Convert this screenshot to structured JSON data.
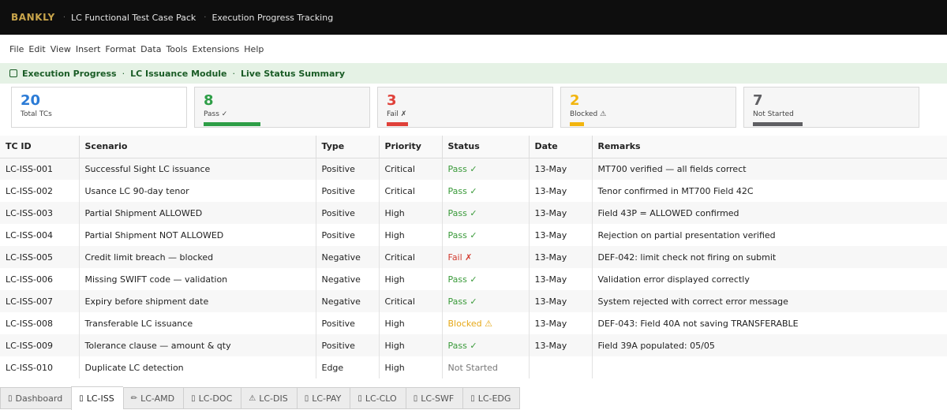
{
  "titlebar": {
    "brand": "BANKLY",
    "separator": "·",
    "doc_title": "LC Functional Test Case Pack",
    "view_title": "Execution Progress Tracking"
  },
  "menu": [
    "File",
    "Edit",
    "View",
    "Insert",
    "Format",
    "Data",
    "Tools",
    "Extensions",
    "Help"
  ],
  "banner": {
    "icon": "grid-icon",
    "parts": [
      "Execution Progress",
      "LC Issuance Module",
      "Live Status Summary"
    ],
    "separator": "·"
  },
  "summary_cards": [
    {
      "count": "20",
      "label": "Total TCs",
      "color": "#2b7bd6",
      "bar_fraction": 0
    },
    {
      "count": "8",
      "label": "Pass ✓",
      "color": "#2e9e47",
      "bar_fraction": 0.4
    },
    {
      "count": "3",
      "label": "Fail ✗",
      "color": "#e0413a",
      "bar_fraction": 0.15
    },
    {
      "count": "2",
      "label": "Blocked ⚠",
      "color": "#f2b50f",
      "bar_fraction": 0.1
    },
    {
      "count": "7",
      "label": "Not Started",
      "color": "#5f5f63",
      "bar_fraction": 0.35
    }
  ],
  "table": {
    "columns": [
      "TC ID",
      "Scenario",
      "Type",
      "Priority",
      "Status",
      "Date",
      "Remarks"
    ],
    "rows": [
      {
        "id": "LC-ISS-001",
        "scenario": "Successful Sight LC issuance",
        "type": "Positive",
        "priority": "Critical",
        "status": "Pass ✓",
        "status_kind": "pass",
        "date": "13-May",
        "remarks": "MT700 verified — all fields correct"
      },
      {
        "id": "LC-ISS-002",
        "scenario": "Usance LC 90-day tenor",
        "type": "Positive",
        "priority": "Critical",
        "status": "Pass ✓",
        "status_kind": "pass",
        "date": "13-May",
        "remarks": "Tenor confirmed in MT700 Field 42C"
      },
      {
        "id": "LC-ISS-003",
        "scenario": "Partial Shipment ALLOWED",
        "type": "Positive",
        "priority": "High",
        "status": "Pass ✓",
        "status_kind": "pass",
        "date": "13-May",
        "remarks": "Field 43P = ALLOWED confirmed"
      },
      {
        "id": "LC-ISS-004",
        "scenario": "Partial Shipment NOT ALLOWED",
        "type": "Positive",
        "priority": "High",
        "status": "Pass ✓",
        "status_kind": "pass",
        "date": "13-May",
        "remarks": "Rejection on partial presentation verified"
      },
      {
        "id": "LC-ISS-005",
        "scenario": "Credit limit breach — blocked",
        "type": "Negative",
        "priority": "Critical",
        "status": "Fail ✗",
        "status_kind": "fail",
        "date": "13-May",
        "remarks": "DEF-042: limit check not firing on submit"
      },
      {
        "id": "LC-ISS-006",
        "scenario": "Missing SWIFT code — validation",
        "type": "Negative",
        "priority": "High",
        "status": "Pass ✓",
        "status_kind": "pass",
        "date": "13-May",
        "remarks": "Validation error displayed correctly"
      },
      {
        "id": "LC-ISS-007",
        "scenario": "Expiry before shipment date",
        "type": "Negative",
        "priority": "Critical",
        "status": "Pass ✓",
        "status_kind": "pass",
        "date": "13-May",
        "remarks": "System rejected with correct error message"
      },
      {
        "id": "LC-ISS-008",
        "scenario": "Transferable LC issuance",
        "type": "Positive",
        "priority": "High",
        "status": "Blocked ⚠",
        "status_kind": "blocked",
        "date": "13-May",
        "remarks": "DEF-043: Field 40A not saving TRANSFERABLE"
      },
      {
        "id": "LC-ISS-009",
        "scenario": "Tolerance clause — amount & qty",
        "type": "Positive",
        "priority": "High",
        "status": "Pass ✓",
        "status_kind": "pass",
        "date": "13-May",
        "remarks": "Field 39A populated: 05/05"
      },
      {
        "id": "LC-ISS-010",
        "scenario": "Duplicate LC detection",
        "type": "Edge",
        "priority": "High",
        "status": "Not Started",
        "status_kind": "notstarted",
        "date": "",
        "remarks": ""
      }
    ]
  },
  "sheet_tabs": [
    {
      "icon": "dashboard-icon",
      "glyph": "▯",
      "label": "Dashboard",
      "active": false
    },
    {
      "icon": "sheet-icon",
      "glyph": "▯",
      "label": "LC-ISS",
      "active": true
    },
    {
      "icon": "pencil-icon",
      "glyph": "✏",
      "label": "LC-AMD",
      "active": false
    },
    {
      "icon": "sheet-icon",
      "glyph": "▯",
      "label": "LC-DOC",
      "active": false
    },
    {
      "icon": "warning-icon",
      "glyph": "⚠",
      "label": "LC-DIS",
      "active": false
    },
    {
      "icon": "sheet-icon",
      "glyph": "▯",
      "label": "LC-PAY",
      "active": false
    },
    {
      "icon": "sheet-icon",
      "glyph": "▯",
      "label": "LC-CLO",
      "active": false
    },
    {
      "icon": "sheet-icon",
      "glyph": "▯",
      "label": "LC-SWF",
      "active": false
    },
    {
      "icon": "sheet-icon",
      "glyph": "▯",
      "label": "LC-EDG",
      "active": false
    }
  ]
}
